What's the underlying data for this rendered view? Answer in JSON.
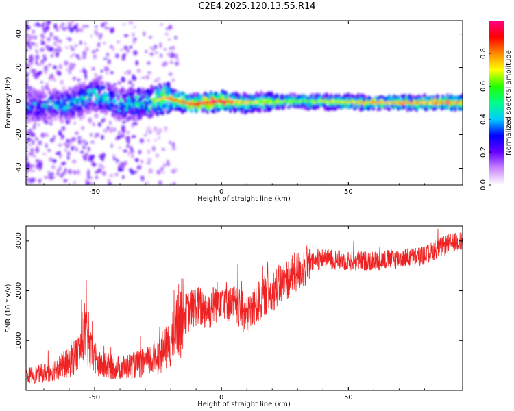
{
  "title": "C2E4.2025.120.13.55.R14",
  "chart_data": [
    {
      "type": "heatmap",
      "xlabel": "Height of straight line (km)",
      "ylabel": "Frequency (Hz)",
      "xlim": [
        -77,
        95
      ],
      "ylim": [
        -50,
        48
      ],
      "x_ticks": [
        -50,
        0,
        50
      ],
      "y_ticks": [
        -40,
        -20,
        0,
        20,
        40
      ],
      "colorbar": {
        "label": "Normalized spectral amplitude",
        "range": [
          0,
          1
        ],
        "ticks": [
          "0.0",
          "0.2",
          "0.4",
          "0.6",
          "0.8"
        ],
        "colors": [
          "#ffffff",
          "#cc88ff",
          "#6600ff",
          "#0000ff",
          "#00ccff",
          "#00ff88",
          "#22ff00",
          "#ffff00",
          "#ff8800",
          "#ff0000",
          "#ff0088"
        ]
      },
      "ridge": [
        {
          "x": -77,
          "freq": -3,
          "amp": 0.35
        },
        {
          "x": -60,
          "freq": -2,
          "amp": 0.45
        },
        {
          "x": -50,
          "freq": 4,
          "amp": 0.5
        },
        {
          "x": -40,
          "freq": -2,
          "amp": 0.45
        },
        {
          "x": -30,
          "freq": -1,
          "amp": 0.55
        },
        {
          "x": -22,
          "freq": 2,
          "amp": 0.75
        },
        {
          "x": -12,
          "freq": -2,
          "amp": 0.9
        },
        {
          "x": 0,
          "freq": 0,
          "amp": 0.95
        },
        {
          "x": 10,
          "freq": -1,
          "amp": 0.7
        },
        {
          "x": 30,
          "freq": 0,
          "amp": 0.6
        },
        {
          "x": 60,
          "freq": -1,
          "amp": 0.75
        },
        {
          "x": 95,
          "freq": -1,
          "amp": 0.8
        }
      ]
    },
    {
      "type": "line",
      "xlabel": "Height of straight line (km)",
      "ylabel": "SNR (10 * v/v)",
      "xlim": [
        -77,
        95
      ],
      "ylim": [
        0,
        3300
      ],
      "x_ticks": [
        -50,
        0,
        50
      ],
      "y_ticks": [
        1000,
        2000,
        3000
      ],
      "series": [
        {
          "color": "#ee2222",
          "x": [
            -77,
            -70,
            -65,
            -60,
            -56,
            -54,
            -52,
            -48,
            -40,
            -35,
            -30,
            -25,
            -20,
            -17,
            -15,
            -10,
            -5,
            0,
            5,
            10,
            15,
            20,
            25,
            30,
            35,
            40,
            50,
            60,
            70,
            80,
            85,
            90,
            95
          ],
          "values": [
            300,
            350,
            450,
            550,
            800,
            1200,
            800,
            500,
            450,
            500,
            550,
            700,
            900,
            1400,
            1500,
            1700,
            1600,
            1900,
            1700,
            1500,
            1800,
            2000,
            2200,
            2400,
            2550,
            2650,
            2600,
            2600,
            2650,
            2700,
            2850,
            2950,
            3000
          ]
        }
      ]
    }
  ]
}
